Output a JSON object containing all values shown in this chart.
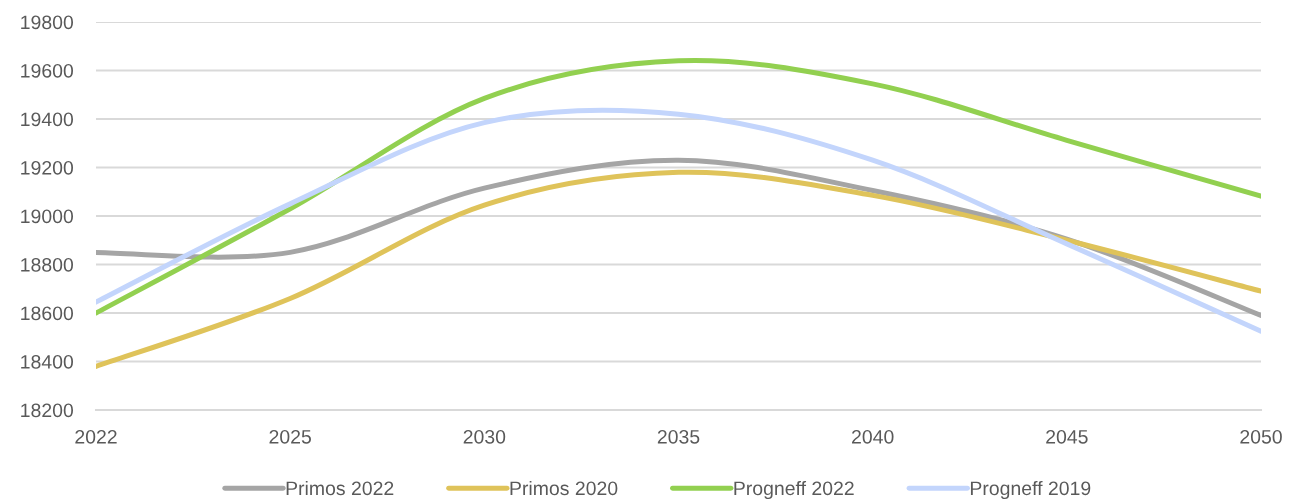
{
  "chart_data": {
    "type": "line",
    "categories": [
      "2022",
      "2025",
      "2030",
      "2035",
      "2040",
      "2045",
      "2050"
    ],
    "series": [
      {
        "name": "Primos 2022",
        "color": "#a5a5a5",
        "values": [
          18850,
          18850,
          19115,
          19230,
          19105,
          18905,
          18590
        ]
      },
      {
        "name": "Primos 2020",
        "color": "#dfc35a",
        "values": [
          18380,
          18660,
          19045,
          19180,
          19085,
          18900,
          18690
        ]
      },
      {
        "name": "Progneff 2022",
        "color": "#92d050",
        "values": [
          18600,
          19030,
          19485,
          19640,
          19545,
          19312,
          19082
        ]
      },
      {
        "name": "Progneff 2019",
        "color": "#c3d5fc",
        "values": [
          18645,
          19050,
          19385,
          19420,
          19230,
          18885,
          18525
        ]
      }
    ],
    "ylim": [
      18200,
      19800
    ],
    "yticks": [
      18200,
      18400,
      18600,
      18800,
      19000,
      19200,
      19400,
      19600,
      19800
    ],
    "grid": "y",
    "legend": "bottom"
  }
}
